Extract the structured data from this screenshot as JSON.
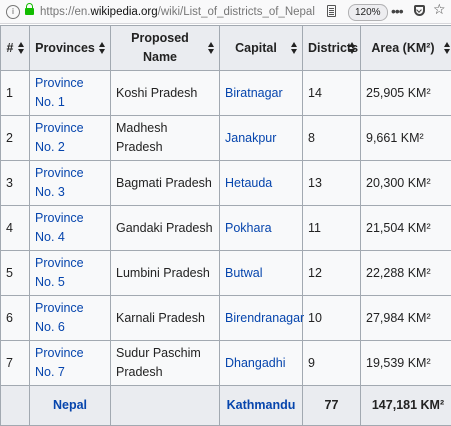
{
  "browser": {
    "url_prefix": "https://en.",
    "url_domain": "wikipedia.org",
    "url_path": "/wiki/List_of_districts_of_Nepal",
    "zoom": "120%"
  },
  "table": {
    "headers": [
      "#",
      "Provinces",
      "Proposed Name",
      "Capital",
      "Districts",
      "Area (KM²)"
    ],
    "rows": [
      {
        "num": "1",
        "province": "Province No. 1",
        "name": "Koshi Pradesh",
        "capital": "Biratnagar",
        "districts": "14",
        "area": "25,905 KM²"
      },
      {
        "num": "2",
        "province": "Province No. 2",
        "name": "Madhesh Pradesh",
        "capital": "Janakpur",
        "districts": "8",
        "area": "9,661 KM²"
      },
      {
        "num": "3",
        "province": "Province No. 3",
        "name": "Bagmati Pradesh",
        "capital": "Hetauda",
        "districts": "13",
        "area": "20,300 KM²"
      },
      {
        "num": "4",
        "province": "Province No. 4",
        "name": "Gandaki Pradesh",
        "capital": "Pokhara",
        "districts": "11",
        "area": "21,504 KM²"
      },
      {
        "num": "5",
        "province": "Province No. 5",
        "name": "Lumbini Pradesh",
        "capital": "Butwal",
        "districts": "12",
        "area": "22,288 KM²"
      },
      {
        "num": "6",
        "province": "Province No. 6",
        "name": "Karnali Pradesh",
        "capital": "Birendranagar",
        "districts": "10",
        "area": "27,984 KM²"
      },
      {
        "num": "7",
        "province": "Province No. 7",
        "name": "Sudur Paschim Pradesh",
        "capital": "Dhangadhi",
        "districts": "9",
        "area": "19,539 KM²"
      }
    ],
    "total": {
      "province": "Nepal",
      "capital": "Kathmandu",
      "districts": "77",
      "area": "147,181 KM²"
    }
  }
}
